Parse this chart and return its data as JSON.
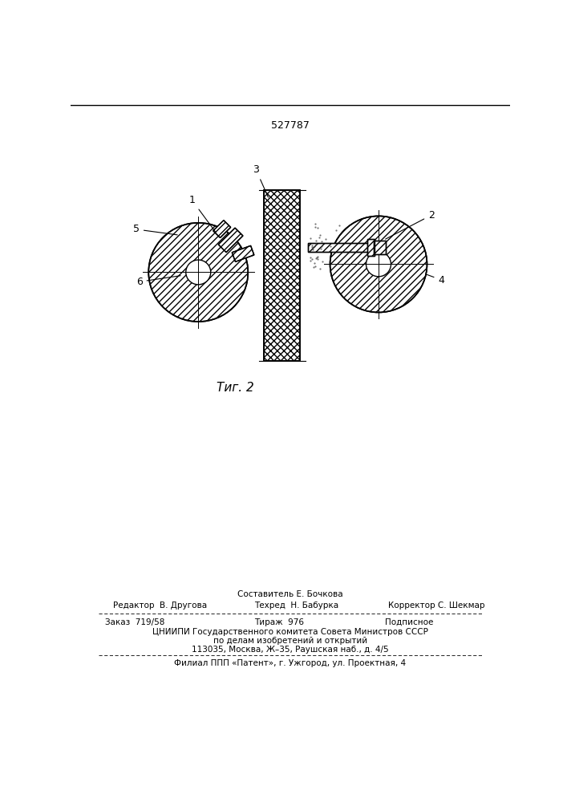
{
  "patent_number": "527787",
  "fig_label": "Τиг. 2",
  "bg_color": "#ffffff",
  "line_color": "#000000",
  "footer": {
    "composer": "Составитель Е. Бочкова",
    "editor_label": "Редактор",
    "editor": "В. Другова",
    "techred_label": "Техред",
    "techred": "Н. Бабурка",
    "corrector_label": "Корректор",
    "corrector": "С. Шекмар",
    "order_label": "Заказ",
    "order": "719/58",
    "tirazh_label": "Тираж",
    "tirazh": "976",
    "podpisnoe": "Подписное",
    "cniipи": "ЦНИИПИ Государственного комитета Совета Министров СССР",
    "po_delam": "по делам изобретений и открытий",
    "address": "113035, Москва, Ж–35, Раушская наб., д. 4/5",
    "filial": "Филиал ППП «Патент», г. Ужгород, ул. Проектная, 4"
  }
}
